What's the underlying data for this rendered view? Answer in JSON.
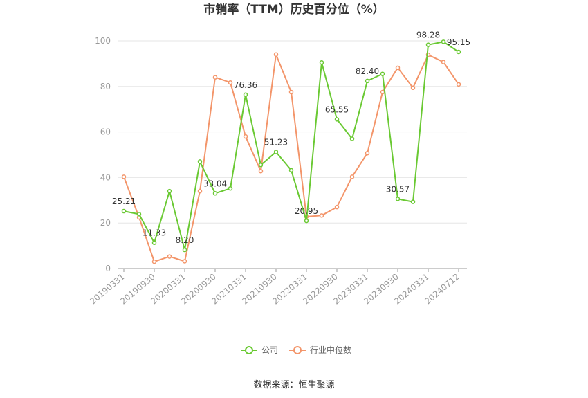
{
  "chart_data": {
    "type": "line",
    "title": "市销率（TTM）历史百分位（%）",
    "source": "数据来源：恒生聚源",
    "ylim": [
      0,
      100
    ],
    "yticks": [
      "0",
      "20",
      "40",
      "60",
      "80",
      "100"
    ],
    "grid": true,
    "legend_position": "bottom",
    "x": [
      "20190331",
      "20190630",
      "20190930",
      "20191231",
      "20200331",
      "20200630",
      "20200930",
      "20201231",
      "20210331",
      "20210630",
      "20210930",
      "20211231",
      "20220331",
      "20220630",
      "20220930",
      "20221231",
      "20230331",
      "20230630",
      "20230930",
      "20231231",
      "20240331",
      "20240630",
      "20240712"
    ],
    "xtick_labels": [
      "20190331",
      "20190930",
      "20200331",
      "20200930",
      "20210331",
      "20210930",
      "20220331",
      "20220930",
      "20230331",
      "20230930",
      "20240331",
      "20240712"
    ],
    "series": [
      {
        "name": "公司",
        "color": "#6ac933",
        "values": [
          25.21,
          23.9,
          11.33,
          34.0,
          8.2,
          47.0,
          33.04,
          35.2,
          76.36,
          45.5,
          51.23,
          43.2,
          20.95,
          90.5,
          65.55,
          57.0,
          82.4,
          85.5,
          30.57,
          29.3,
          98.28,
          99.6,
          95.15
        ],
        "labels": [
          "25.21",
          "",
          "11.33",
          "",
          "8.20",
          "",
          "33.04",
          "",
          "76.36",
          "",
          "51.23",
          "",
          "20.95",
          "",
          "65.55",
          "",
          "82.40",
          "",
          "30.57",
          "",
          "98.28",
          "",
          "95.15"
        ]
      },
      {
        "name": "行业中位数",
        "color": "#f3956a",
        "values": [
          40.3,
          22.5,
          3.0,
          5.3,
          3.2,
          34.0,
          84.0,
          81.7,
          58.0,
          42.8,
          94.0,
          77.5,
          22.8,
          23.3,
          27.0,
          40.3,
          50.7,
          77.5,
          88.2,
          79.4,
          93.9,
          90.7,
          80.9
        ],
        "labels": []
      }
    ]
  }
}
